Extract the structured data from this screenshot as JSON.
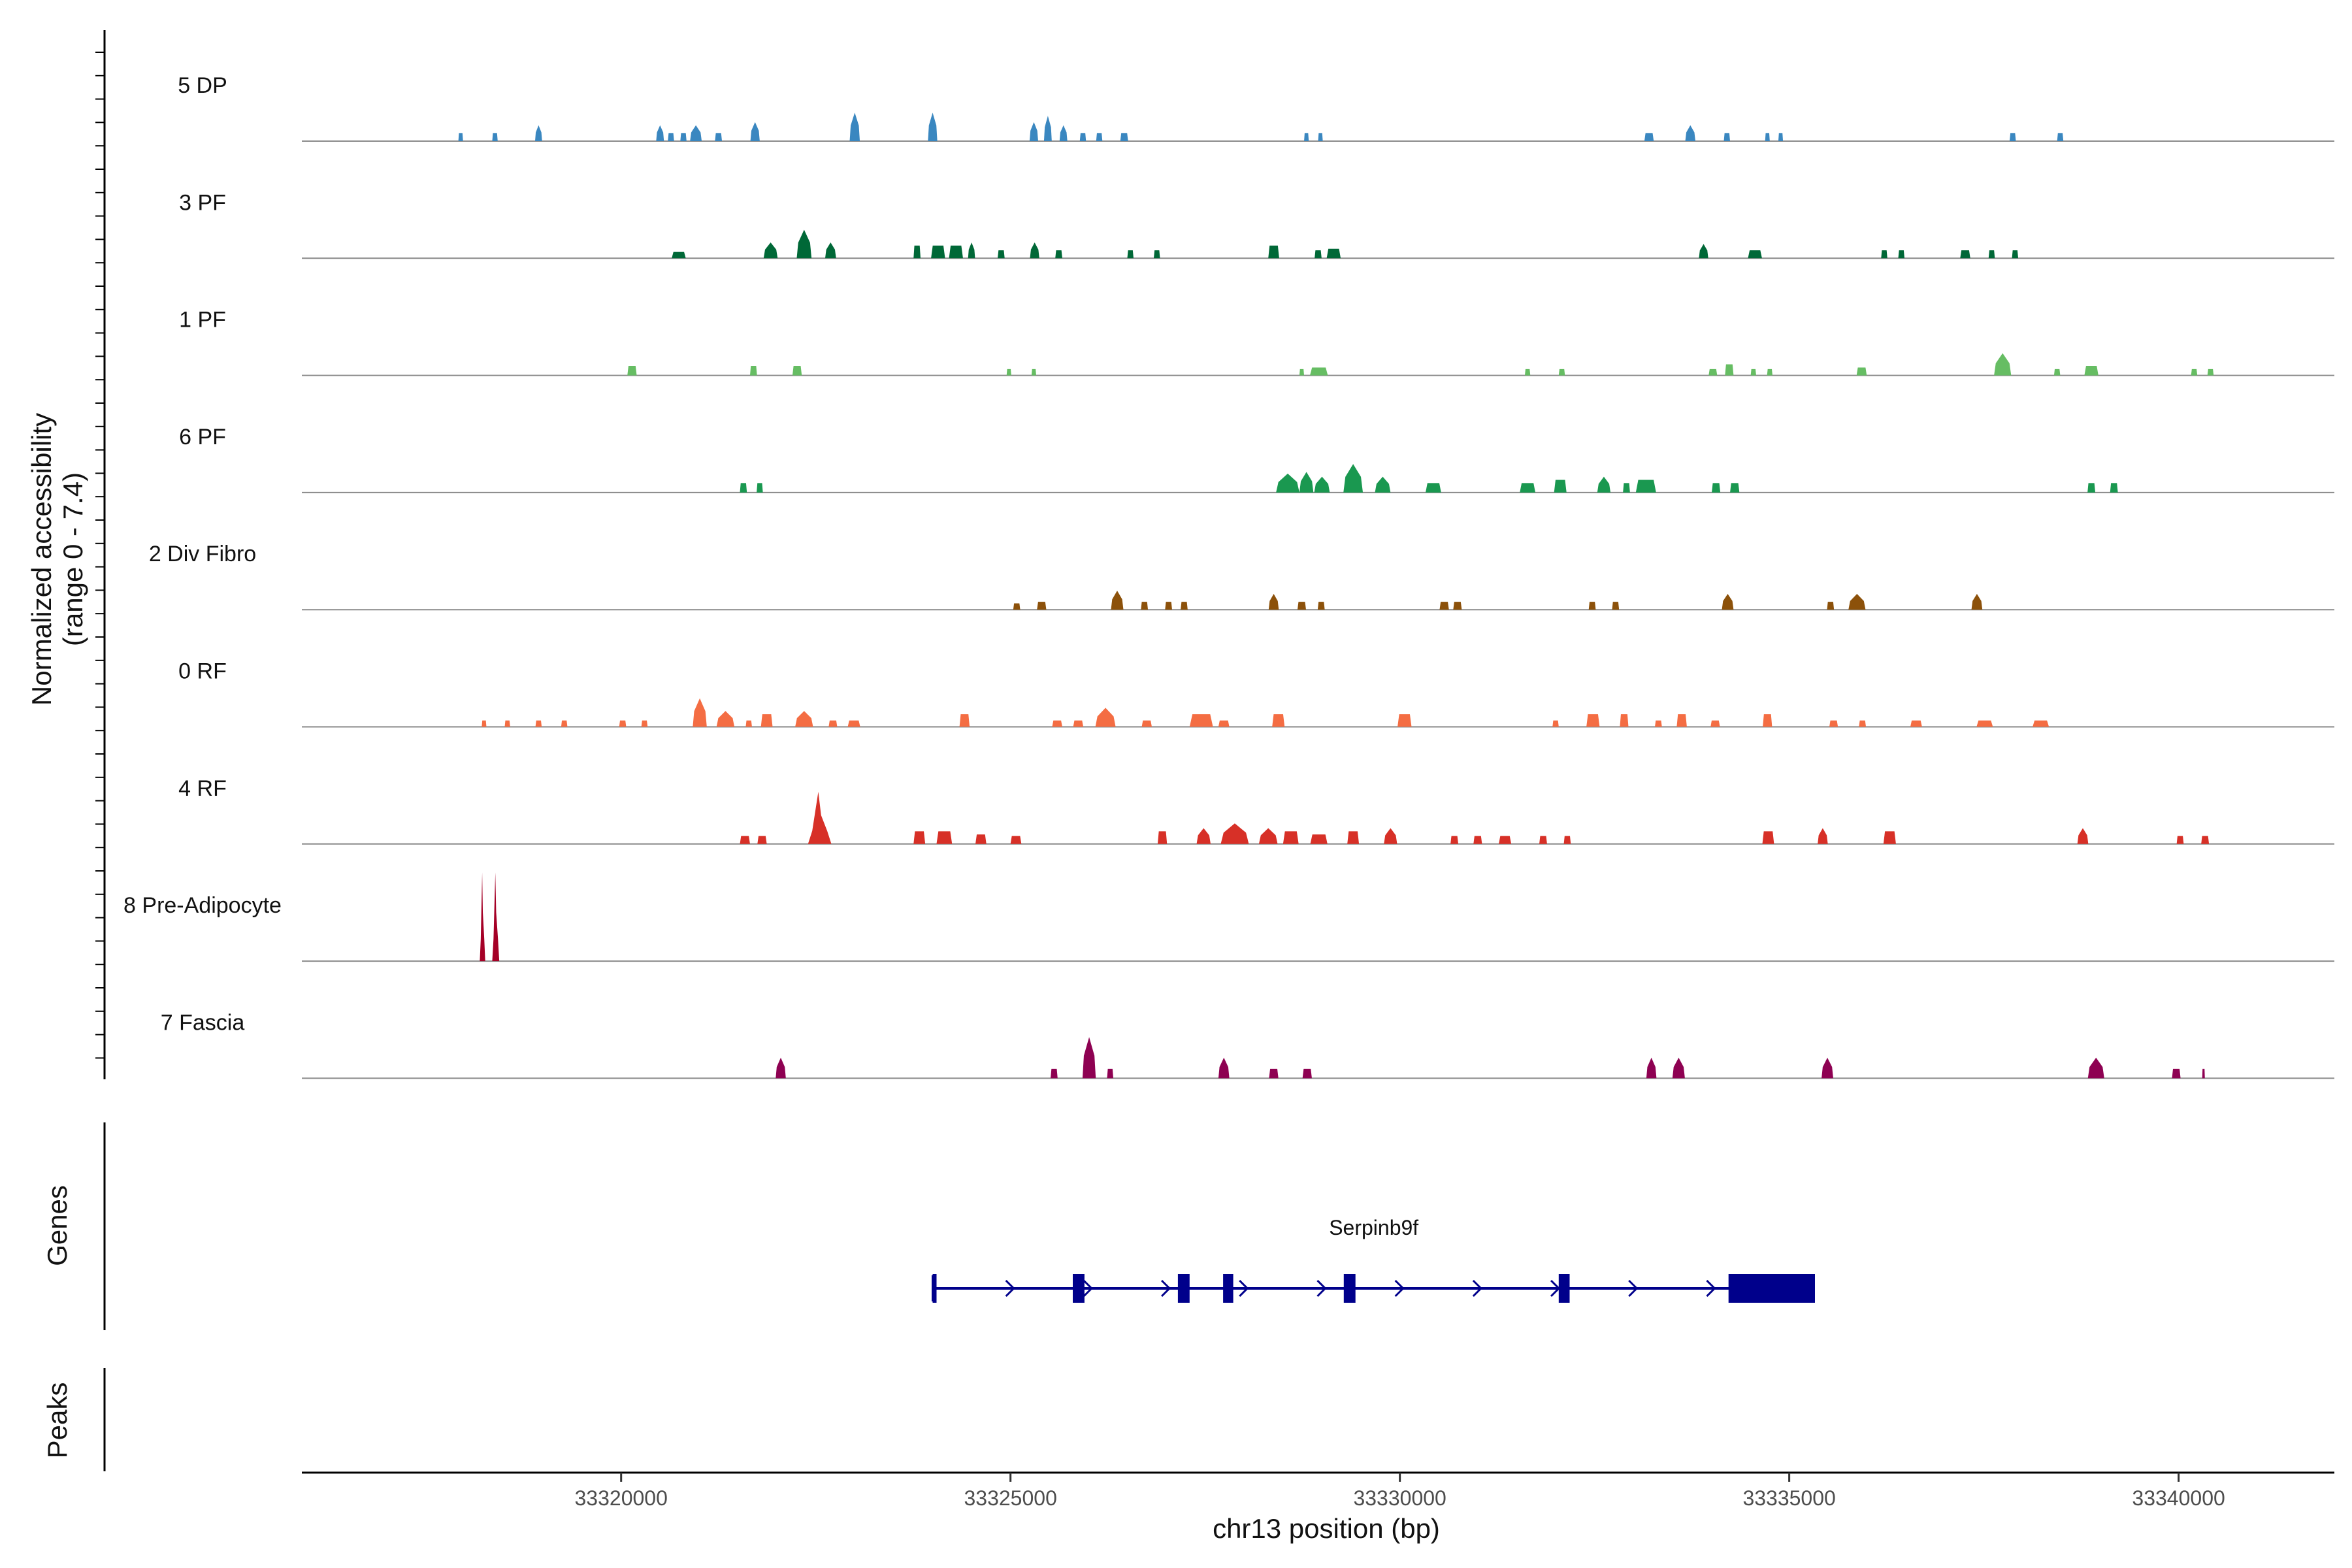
{
  "chart_data": {
    "type": "area",
    "title": "",
    "ylabel_line1": "Normalized accessibility",
    "ylabel_line2": "(range 0 - 7.4)",
    "genes_label": "Genes",
    "peaks_label": "Peaks",
    "xlabel": "chr13 position (bp)",
    "xlim": [
      33315900,
      33342000
    ],
    "ylim": [
      0,
      7.4
    ],
    "xticks": [
      33320000,
      33325000,
      33330000,
      33335000,
      33340000
    ],
    "tick_labels": [
      "33320000",
      "33325000",
      "33330000",
      "33335000",
      "33340000"
    ],
    "tracks": [
      {
        "name": "5 DP",
        "color": "#3a87c0",
        "peaks": [
          [
            33317940,
            60,
            0.5
          ],
          [
            33318380,
            70,
            0.5
          ],
          [
            33318940,
            90,
            1.0
          ],
          [
            33320500,
            100,
            1.0
          ],
          [
            33320640,
            80,
            0.5
          ],
          [
            33320800,
            80,
            0.5
          ],
          [
            33320960,
            150,
            1.0
          ],
          [
            33321250,
            90,
            0.5
          ],
          [
            33321720,
            120,
            1.2
          ],
          [
            33323000,
            130,
            1.8
          ],
          [
            33324000,
            120,
            1.8
          ],
          [
            33325300,
            110,
            1.2
          ],
          [
            33325480,
            100,
            1.6
          ],
          [
            33325680,
            100,
            1.0
          ],
          [
            33325930,
            80,
            0.5
          ],
          [
            33326140,
            80,
            0.5
          ],
          [
            33326460,
            100,
            0.5
          ],
          [
            33328800,
            60,
            0.5
          ],
          [
            33328980,
            60,
            0.5
          ],
          [
            33333200,
            120,
            0.5
          ],
          [
            33333730,
            130,
            1.0
          ],
          [
            33334200,
            80,
            0.5
          ],
          [
            33334720,
            60,
            0.5
          ],
          [
            33334890,
            60,
            0.5
          ],
          [
            33337870,
            80,
            0.5
          ],
          [
            33338480,
            80,
            0.5
          ]
        ]
      },
      {
        "name": "3 PF",
        "color": "#006837",
        "peaks": [
          [
            33320740,
            180,
            0.4
          ],
          [
            33321920,
            180,
            1.0
          ],
          [
            33322350,
            190,
            1.8
          ],
          [
            33322690,
            140,
            1.0
          ],
          [
            33323800,
            90,
            0.8
          ],
          [
            33324070,
            180,
            0.8
          ],
          [
            33324300,
            180,
            0.8
          ],
          [
            33324500,
            90,
            1.0
          ],
          [
            33324880,
            90,
            0.5
          ],
          [
            33325310,
            120,
            1.0
          ],
          [
            33325620,
            90,
            0.5
          ],
          [
            33326540,
            80,
            0.5
          ],
          [
            33326880,
            80,
            0.5
          ],
          [
            33328380,
            140,
            0.8
          ],
          [
            33328950,
            90,
            0.5
          ],
          [
            33329150,
            180,
            0.6
          ],
          [
            33333900,
            120,
            0.9
          ],
          [
            33334560,
            180,
            0.5
          ],
          [
            33336220,
            80,
            0.5
          ],
          [
            33336440,
            80,
            0.5
          ],
          [
            33337260,
            130,
            0.5
          ],
          [
            33337600,
            80,
            0.5
          ],
          [
            33337900,
            80,
            0.5
          ]
        ]
      },
      {
        "name": "1 PF",
        "color": "#66bd63",
        "peaks": [
          [
            33320140,
            120,
            0.6
          ],
          [
            33321700,
            90,
            0.6
          ],
          [
            33322260,
            120,
            0.6
          ],
          [
            33324980,
            60,
            0.4
          ],
          [
            33325300,
            60,
            0.4
          ],
          [
            33328740,
            60,
            0.4
          ],
          [
            33328960,
            230,
            0.5
          ],
          [
            33331640,
            70,
            0.4
          ],
          [
            33332080,
            80,
            0.4
          ],
          [
            33334020,
            110,
            0.4
          ],
          [
            33334230,
            110,
            0.7
          ],
          [
            33334540,
            70,
            0.4
          ],
          [
            33334750,
            70,
            0.4
          ],
          [
            33335930,
            130,
            0.5
          ],
          [
            33337740,
            220,
            1.4
          ],
          [
            33338440,
            80,
            0.4
          ],
          [
            33338880,
            180,
            0.6
          ],
          [
            33340200,
            80,
            0.4
          ],
          [
            33340410,
            80,
            0.4
          ]
        ]
      },
      {
        "name": "6 PF",
        "color": "#1a9850",
        "peaks": [
          [
            33321570,
            90,
            0.6
          ],
          [
            33321780,
            80,
            0.6
          ],
          [
            33328560,
            300,
            1.2
          ],
          [
            33328800,
            180,
            1.3
          ],
          [
            33329000,
            200,
            1.0
          ],
          [
            33329400,
            250,
            1.8
          ],
          [
            33329780,
            200,
            1.0
          ],
          [
            33330430,
            200,
            0.6
          ],
          [
            33331640,
            200,
            0.6
          ],
          [
            33332060,
            160,
            0.8
          ],
          [
            33332620,
            170,
            1.0
          ],
          [
            33332910,
            90,
            0.6
          ],
          [
            33333160,
            260,
            0.8
          ],
          [
            33334060,
            110,
            0.6
          ],
          [
            33334300,
            120,
            0.6
          ],
          [
            33338880,
            100,
            0.6
          ],
          [
            33339170,
            100,
            0.6
          ]
        ]
      },
      {
        "name": "2 Div Fibro",
        "color": "#8c510a",
        "peaks": [
          [
            33325080,
            90,
            0.4
          ],
          [
            33325400,
            120,
            0.5
          ],
          [
            33326370,
            160,
            1.2
          ],
          [
            33326720,
            90,
            0.5
          ],
          [
            33327030,
            90,
            0.5
          ],
          [
            33327230,
            90,
            0.5
          ],
          [
            33328380,
            130,
            1.0
          ],
          [
            33328740,
            110,
            0.5
          ],
          [
            33328990,
            90,
            0.5
          ],
          [
            33330570,
            120,
            0.5
          ],
          [
            33330740,
            110,
            0.5
          ],
          [
            33332470,
            90,
            0.5
          ],
          [
            33332770,
            90,
            0.5
          ],
          [
            33334210,
            150,
            1.0
          ],
          [
            33335530,
            90,
            0.5
          ],
          [
            33335870,
            220,
            1.0
          ],
          [
            33337410,
            140,
            1.0
          ]
        ]
      },
      {
        "name": "0 RF",
        "color": "#f46d43",
        "peaks": [
          [
            33318240,
            60,
            0.4
          ],
          [
            33318540,
            70,
            0.4
          ],
          [
            33318940,
            80,
            0.4
          ],
          [
            33319270,
            80,
            0.4
          ],
          [
            33320020,
            90,
            0.4
          ],
          [
            33320300,
            80,
            0.4
          ],
          [
            33321010,
            180,
            1.8
          ],
          [
            33321340,
            230,
            1.0
          ],
          [
            33321640,
            80,
            0.4
          ],
          [
            33321870,
            150,
            0.8
          ],
          [
            33322350,
            230,
            1.0
          ],
          [
            33322720,
            110,
            0.4
          ],
          [
            33322990,
            160,
            0.4
          ],
          [
            33324410,
            130,
            0.8
          ],
          [
            33325600,
            130,
            0.4
          ],
          [
            33325870,
            130,
            0.4
          ],
          [
            33326220,
            260,
            1.2
          ],
          [
            33326750,
            130,
            0.4
          ],
          [
            33327450,
            300,
            0.8
          ],
          [
            33327740,
            140,
            0.4
          ],
          [
            33328440,
            160,
            0.8
          ],
          [
            33330060,
            180,
            0.8
          ],
          [
            33332000,
            80,
            0.4
          ],
          [
            33332480,
            170,
            0.8
          ],
          [
            33332880,
            110,
            0.8
          ],
          [
            33333320,
            90,
            0.4
          ],
          [
            33333620,
            130,
            0.8
          ],
          [
            33334050,
            120,
            0.4
          ],
          [
            33334720,
            120,
            0.8
          ],
          [
            33335570,
            110,
            0.4
          ],
          [
            33335940,
            90,
            0.4
          ],
          [
            33336630,
            150,
            0.4
          ],
          [
            33337510,
            210,
            0.4
          ],
          [
            33338230,
            210,
            0.4
          ]
        ]
      },
      {
        "name": "4 RF",
        "color": "#d73027",
        "peaks": [
          [
            33321590,
            130,
            0.5
          ],
          [
            33321810,
            120,
            0.5
          ],
          [
            33322550,
            300,
            3.3
          ],
          [
            33323830,
            150,
            0.8
          ],
          [
            33324150,
            200,
            0.8
          ],
          [
            33324620,
            140,
            0.6
          ],
          [
            33325070,
            140,
            0.5
          ],
          [
            33326950,
            120,
            0.8
          ],
          [
            33327480,
            180,
            1.0
          ],
          [
            33327880,
            360,
            1.3
          ],
          [
            33328310,
            240,
            1.0
          ],
          [
            33328600,
            200,
            0.8
          ],
          [
            33328960,
            220,
            0.6
          ],
          [
            33329400,
            150,
            0.8
          ],
          [
            33329880,
            170,
            1.0
          ],
          [
            33330700,
            100,
            0.5
          ],
          [
            33331000,
            110,
            0.5
          ],
          [
            33331350,
            160,
            0.5
          ],
          [
            33331840,
            100,
            0.5
          ],
          [
            33332150,
            90,
            0.5
          ],
          [
            33334730,
            150,
            0.8
          ],
          [
            33335430,
            130,
            1.0
          ],
          [
            33336290,
            160,
            0.8
          ],
          [
            33338770,
            140,
            1.0
          ],
          [
            33340020,
            90,
            0.5
          ],
          [
            33340340,
            100,
            0.5
          ]
        ]
      },
      {
        "name": "8 Pre-Adipocyte",
        "color": "#a50026",
        "peaks": [
          [
            33318220,
            70,
            5.6
          ],
          [
            33318390,
            90,
            5.6
          ]
        ]
      },
      {
        "name": "7 Fascia",
        "color": "#8e0152",
        "peaks": [
          [
            33322050,
            130,
            1.3
          ],
          [
            33325560,
            90,
            0.6
          ],
          [
            33326010,
            170,
            2.6
          ],
          [
            33326280,
            80,
            0.6
          ],
          [
            33327740,
            140,
            1.3
          ],
          [
            33328380,
            120,
            0.6
          ],
          [
            33328810,
            120,
            0.6
          ],
          [
            33333230,
            130,
            1.3
          ],
          [
            33333580,
            160,
            1.3
          ],
          [
            33335490,
            150,
            1.3
          ],
          [
            33338940,
            210,
            1.3
          ],
          [
            33339970,
            110,
            0.6
          ],
          [
            33340320,
            30,
            0.6
          ]
        ]
      }
    ],
    "gene": {
      "name": "Serpinb9f",
      "start": 33324000,
      "end": 33335330,
      "strand": "+",
      "exons": [
        [
          33324000,
          33324050
        ],
        [
          33325800,
          33325950
        ],
        [
          33327150,
          33327300
        ],
        [
          33327730,
          33327860
        ],
        [
          33329280,
          33329430
        ],
        [
          33332040,
          33332180
        ],
        [
          33334220,
          33335330
        ]
      ]
    },
    "peaks_track": []
  }
}
